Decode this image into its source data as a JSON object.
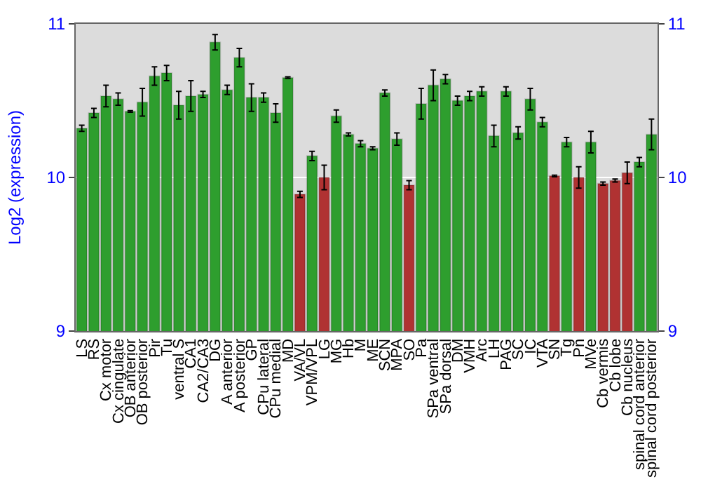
{
  "chart_data": {
    "type": "bar",
    "ylabel": "Log2 (expression)",
    "categories": [
      "LS",
      "RS",
      "Cx motor",
      "Cx cingulate",
      "OB anterior",
      "OB posterior",
      "Pir",
      "Tu",
      "ventral S",
      "CA1",
      "CA2/CA3",
      "DG",
      "A anterior",
      "A posterior",
      "GP",
      "CPu lateral",
      "CPu medial",
      "MD",
      "VA/VL",
      "VPM/VPL",
      "LG",
      "MG",
      "Hb",
      "M",
      "ME",
      "SCN",
      "MPA",
      "SO",
      "Pa",
      "SPa ventral",
      "SPa dorsal",
      "DM",
      "VMH",
      "Arc",
      "LH",
      "PAG",
      "SC",
      "IC",
      "VTA",
      "SN",
      "Tg",
      "Pn",
      "MVe",
      "Cb vermis",
      "Cb lobe",
      "Cb nucleus",
      "spinal cord anterior",
      "spinal cord posterior"
    ],
    "values": [
      10.32,
      10.42,
      10.53,
      10.51,
      10.43,
      10.49,
      10.66,
      10.68,
      10.47,
      10.53,
      10.54,
      10.88,
      10.57,
      10.78,
      10.52,
      10.52,
      10.42,
      10.65,
      9.89,
      10.14,
      10.0,
      10.4,
      10.28,
      10.22,
      10.19,
      10.55,
      10.25,
      9.95,
      10.48,
      10.6,
      10.64,
      10.5,
      10.53,
      10.56,
      10.27,
      10.56,
      10.29,
      10.51,
      10.36,
      10.01,
      10.23,
      10.0,
      10.23,
      9.96,
      9.98,
      10.03,
      10.1,
      10.28
    ],
    "errors": [
      0.02,
      0.03,
      0.07,
      0.04,
      0.005,
      0.09,
      0.06,
      0.05,
      0.09,
      0.1,
      0.02,
      0.05,
      0.03,
      0.06,
      0.09,
      0.03,
      0.06,
      0.005,
      0.02,
      0.03,
      0.08,
      0.04,
      0.01,
      0.02,
      0.01,
      0.02,
      0.04,
      0.03,
      0.1,
      0.1,
      0.03,
      0.03,
      0.03,
      0.03,
      0.07,
      0.03,
      0.04,
      0.07,
      0.03,
      0.005,
      0.03,
      0.07,
      0.07,
      0.01,
      0.01,
      0.07,
      0.03,
      0.1
    ],
    "colors": [
      "#2e9e2e",
      "#2e9e2e",
      "#2e9e2e",
      "#2e9e2e",
      "#2e9e2e",
      "#2e9e2e",
      "#2e9e2e",
      "#2e9e2e",
      "#2e9e2e",
      "#2e9e2e",
      "#2e9e2e",
      "#2e9e2e",
      "#2e9e2e",
      "#2e9e2e",
      "#2e9e2e",
      "#2e9e2e",
      "#2e9e2e",
      "#2e9e2e",
      "#b03232",
      "#2e9e2e",
      "#b03232",
      "#2e9e2e",
      "#2e9e2e",
      "#2e9e2e",
      "#2e9e2e",
      "#2e9e2e",
      "#2e9e2e",
      "#b03232",
      "#2e9e2e",
      "#2e9e2e",
      "#2e9e2e",
      "#2e9e2e",
      "#2e9e2e",
      "#2e9e2e",
      "#2e9e2e",
      "#2e9e2e",
      "#2e9e2e",
      "#2e9e2e",
      "#2e9e2e",
      "#b03232",
      "#2e9e2e",
      "#b03232",
      "#2e9e2e",
      "#b03232",
      "#b03232",
      "#b03232",
      "#2e9e2e",
      "#2e9e2e"
    ],
    "ylim": [
      9,
      11
    ],
    "yticks": [
      9,
      10,
      11
    ],
    "y2lim": [
      9,
      11
    ],
    "y2ticks": [
      9,
      10,
      11
    ],
    "grid": "y"
  }
}
